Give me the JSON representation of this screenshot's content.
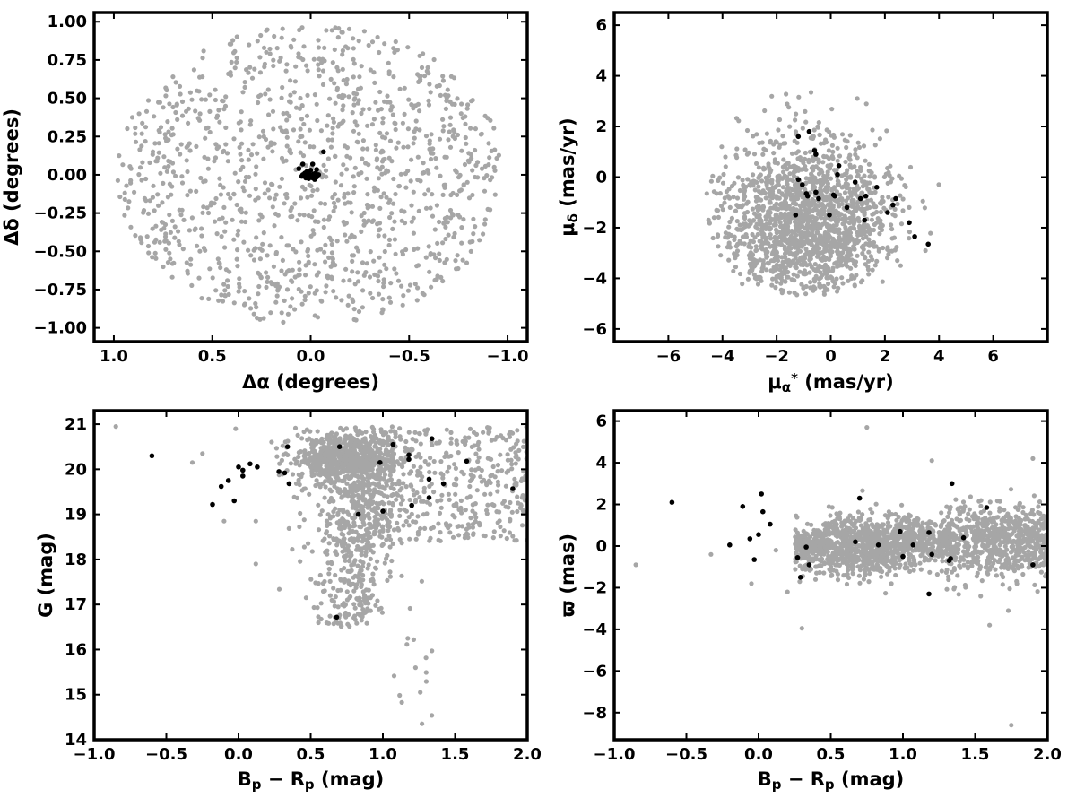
{
  "colors": {
    "field": "#a6a6a6",
    "members": "#000000",
    "frame": "#000000"
  },
  "chart_data": [
    {
      "id": "sky",
      "type": "scatter",
      "title": "",
      "xlabel": "Δα (degrees)",
      "ylabel": "Δδ (degrees)",
      "xlim": [
        1.1,
        -1.1
      ],
      "ylim": [
        -1.09,
        1.06
      ],
      "xticks": [
        1.0,
        0.5,
        0.0,
        -0.5,
        -1.0
      ],
      "xtick_labels": [
        "1.0",
        "0.5",
        "0.0",
        "−0.5",
        "−1.0"
      ],
      "yticks": [
        -1.0,
        -0.75,
        -0.5,
        -0.25,
        0.0,
        0.25,
        0.5,
        0.75,
        1.0
      ],
      "ytick_labels": [
        "−1.00",
        "−0.75",
        "−0.50",
        "−0.25",
        "0.00",
        "0.25",
        "0.50",
        "0.75",
        "1.00"
      ],
      "grid": false,
      "field_distribution": {
        "shape": "uniform disk",
        "center": [
          0,
          0
        ],
        "radius_deg": 1.0,
        "count": 1200
      },
      "members": [
        {
          "x": 0.02,
          "y": -0.01
        },
        {
          "x": 0.0,
          "y": 0.0
        },
        {
          "x": -0.01,
          "y": -0.02
        },
        {
          "x": 0.03,
          "y": -0.005
        },
        {
          "x": -0.02,
          "y": 0.0
        },
        {
          "x": 0.01,
          "y": 0.01
        },
        {
          "x": -0.03,
          "y": -0.015
        },
        {
          "x": 0.04,
          "y": 0.0
        },
        {
          "x": 0.01,
          "y": -0.025
        },
        {
          "x": -0.015,
          "y": 0.005
        },
        {
          "x": 0.0,
          "y": 0.03
        },
        {
          "x": 0.02,
          "y": 0.02
        },
        {
          "x": -0.02,
          "y": -0.03
        },
        {
          "x": 0.03,
          "y": 0.01
        },
        {
          "x": -0.04,
          "y": 0.0
        },
        {
          "x": 0.015,
          "y": 0.005
        },
        {
          "x": 0.045,
          "y": -0.01
        },
        {
          "x": -0.005,
          "y": -0.005
        },
        {
          "x": 0.025,
          "y": -0.02
        },
        {
          "x": -0.025,
          "y": 0.01
        },
        {
          "x": -0.01,
          "y": 0.07
        },
        {
          "x": 0.04,
          "y": 0.07
        },
        {
          "x": -0.065,
          "y": 0.15
        },
        {
          "x": 0.06,
          "y": 0.04
        },
        {
          "x": -0.03,
          "y": 0.035
        }
      ]
    },
    {
      "id": "pm",
      "type": "scatter",
      "title": "",
      "xlabel": "μα* (mas/yr)",
      "ylabel": "μδ (mas/yr)",
      "xlabel_parts": {
        "base": "μ",
        "sub": "α",
        "sup": "*",
        "unit": "(mas/yr)"
      },
      "ylabel_parts": {
        "base": "μ",
        "sub": "δ",
        "unit": "(mas/yr)"
      },
      "xlim": [
        -8,
        8
      ],
      "ylim": [
        -6.5,
        6.5
      ],
      "xticks": [
        -6,
        -4,
        -2,
        0,
        2,
        4,
        6
      ],
      "xtick_labels": [
        "−6",
        "−4",
        "−2",
        "0",
        "2",
        "4",
        "6"
      ],
      "yticks": [
        -6,
        -4,
        -2,
        0,
        2,
        4,
        6
      ],
      "ytick_labels": [
        "−6",
        "−4",
        "−2",
        "0",
        "2",
        "4",
        "6"
      ],
      "grid": false,
      "field_distribution": {
        "shape": "elliptical blob",
        "center": [
          -1.0,
          -1.8
        ],
        "radius_x": 3.5,
        "radius_y": 3.0,
        "count": 1500
      },
      "members": [
        {
          "x": -1.2,
          "y": 1.6
        },
        {
          "x": -0.8,
          "y": 1.8
        },
        {
          "x": -0.6,
          "y": 1.05
        },
        {
          "x": -0.55,
          "y": 0.9
        },
        {
          "x": 0.3,
          "y": 0.45
        },
        {
          "x": 0.25,
          "y": 0.1
        },
        {
          "x": -1.2,
          "y": -0.1
        },
        {
          "x": -1.05,
          "y": -0.3
        },
        {
          "x": -0.9,
          "y": -0.65
        },
        {
          "x": -0.85,
          "y": -0.75
        },
        {
          "x": -0.55,
          "y": -0.6
        },
        {
          "x": -0.45,
          "y": -0.85
        },
        {
          "x": 0.1,
          "y": -0.7
        },
        {
          "x": 0.9,
          "y": -0.2
        },
        {
          "x": 1.3,
          "y": -0.75
        },
        {
          "x": 1.1,
          "y": -0.85
        },
        {
          "x": 1.7,
          "y": -0.4
        },
        {
          "x": -1.3,
          "y": -1.5
        },
        {
          "x": -0.05,
          "y": -1.5
        },
        {
          "x": 0.6,
          "y": -1.2
        },
        {
          "x": 1.25,
          "y": -1.7
        },
        {
          "x": 2.1,
          "y": -1.4
        },
        {
          "x": 2.3,
          "y": -1.1
        },
        {
          "x": 2.4,
          "y": -0.85
        },
        {
          "x": 2.9,
          "y": -1.8
        },
        {
          "x": 3.1,
          "y": -2.35
        },
        {
          "x": 3.6,
          "y": -2.65
        },
        {
          "x": 0.15,
          "y": -0.75
        }
      ]
    },
    {
      "id": "cmd",
      "type": "scatter",
      "title": "",
      "xlabel": "Bp − Rp (mag)",
      "ylabel": "G (mag)",
      "xlabel_parts": {
        "a": "B",
        "a_sub": "p",
        "op": " − ",
        "b": "R",
        "b_sub": "p",
        "unit": "(mag)"
      },
      "xlim": [
        -1.0,
        2.0
      ],
      "ylim": [
        14.0,
        21.3
      ],
      "xticks": [
        -1.0,
        -0.5,
        0.0,
        0.5,
        1.0,
        1.5,
        2.0
      ],
      "xtick_labels": [
        "−1.0",
        "−0.5",
        "0.0",
        "0.5",
        "1.0",
        "1.5",
        "2.0"
      ],
      "yticks": [
        14,
        15,
        16,
        17,
        18,
        19,
        20,
        21
      ],
      "ytick_labels": [
        "14",
        "15",
        "16",
        "17",
        "18",
        "19",
        "20",
        "21"
      ],
      "grid": false,
      "field_distribution": {
        "shape": "color-magnitude sequence",
        "dense_core": [
          0.75,
          20.2
        ],
        "count": 1700
      },
      "members": [
        {
          "x": -0.6,
          "y": 20.3
        },
        {
          "x": -0.18,
          "y": 19.22
        },
        {
          "x": -0.12,
          "y": 19.62
        },
        {
          "x": -0.07,
          "y": 19.75
        },
        {
          "x": -0.03,
          "y": 19.3
        },
        {
          "x": 0.0,
          "y": 20.05
        },
        {
          "x": 0.03,
          "y": 19.98
        },
        {
          "x": 0.03,
          "y": 19.85
        },
        {
          "x": 0.08,
          "y": 20.12
        },
        {
          "x": 0.13,
          "y": 20.05
        },
        {
          "x": 0.28,
          "y": 19.95
        },
        {
          "x": 0.32,
          "y": 19.92
        },
        {
          "x": 0.34,
          "y": 20.5
        },
        {
          "x": 0.35,
          "y": 19.68
        },
        {
          "x": 0.68,
          "y": 16.72
        },
        {
          "x": 0.7,
          "y": 20.5
        },
        {
          "x": 0.83,
          "y": 19.0
        },
        {
          "x": 0.98,
          "y": 20.15
        },
        {
          "x": 1.0,
          "y": 19.07
        },
        {
          "x": 1.07,
          "y": 20.55
        },
        {
          "x": 1.18,
          "y": 20.32
        },
        {
          "x": 1.18,
          "y": 20.22
        },
        {
          "x": 1.2,
          "y": 19.2
        },
        {
          "x": 1.32,
          "y": 19.37
        },
        {
          "x": 1.32,
          "y": 19.78
        },
        {
          "x": 1.34,
          "y": 20.68
        },
        {
          "x": 1.42,
          "y": 19.68
        },
        {
          "x": 1.58,
          "y": 20.18
        },
        {
          "x": 1.9,
          "y": 19.57
        }
      ]
    },
    {
      "id": "parallax",
      "type": "scatter",
      "title": "",
      "xlabel": "Bp − Rp (mag)",
      "ylabel": "ϖ (mas)",
      "xlabel_parts": {
        "a": "B",
        "a_sub": "p",
        "op": " − ",
        "b": "R",
        "b_sub": "p",
        "unit": "(mag)"
      },
      "xlim": [
        -1.0,
        2.0
      ],
      "ylim": [
        -9.3,
        6.5
      ],
      "xticks": [
        -1.0,
        -0.5,
        0.0,
        0.5,
        1.0,
        1.5,
        2.0
      ],
      "xtick_labels": [
        "−1.0",
        "−0.5",
        "0.0",
        "0.5",
        "1.0",
        "1.5",
        "2.0"
      ],
      "yticks": [
        -8,
        -6,
        -4,
        -2,
        0,
        2,
        4,
        6
      ],
      "ytick_labels": [
        "−8",
        "−6",
        "−4",
        "−2",
        "0",
        "2",
        "4",
        "6"
      ],
      "grid": false,
      "field_distribution": {
        "shape": "horizontal band around zero parallax",
        "count": 1700
      },
      "members": [
        {
          "x": -0.6,
          "y": 2.1
        },
        {
          "x": -0.2,
          "y": 0.05
        },
        {
          "x": -0.11,
          "y": 1.9
        },
        {
          "x": -0.06,
          "y": 0.35
        },
        {
          "x": -0.03,
          "y": -0.65
        },
        {
          "x": 0.0,
          "y": 0.55
        },
        {
          "x": 0.02,
          "y": 2.5
        },
        {
          "x": 0.03,
          "y": 1.65
        },
        {
          "x": 0.08,
          "y": 1.05
        },
        {
          "x": 0.27,
          "y": -0.55
        },
        {
          "x": 0.29,
          "y": -1.5
        },
        {
          "x": 0.33,
          "y": -0.05
        },
        {
          "x": 0.35,
          "y": -0.9
        },
        {
          "x": 0.67,
          "y": 0.2
        },
        {
          "x": 0.7,
          "y": 2.3
        },
        {
          "x": 0.83,
          "y": 0.05
        },
        {
          "x": 0.98,
          "y": 0.7
        },
        {
          "x": 1.0,
          "y": -0.5
        },
        {
          "x": 1.07,
          "y": 0.05
        },
        {
          "x": 1.18,
          "y": -2.3
        },
        {
          "x": 1.18,
          "y": 0.65
        },
        {
          "x": 1.2,
          "y": -0.4
        },
        {
          "x": 1.32,
          "y": -0.7
        },
        {
          "x": 1.34,
          "y": 3.0
        },
        {
          "x": 1.42,
          "y": 0.4
        },
        {
          "x": 1.58,
          "y": 1.85
        },
        {
          "x": 1.9,
          "y": -0.9
        },
        {
          "x": 1.33,
          "y": -0.6
        }
      ]
    }
  ]
}
